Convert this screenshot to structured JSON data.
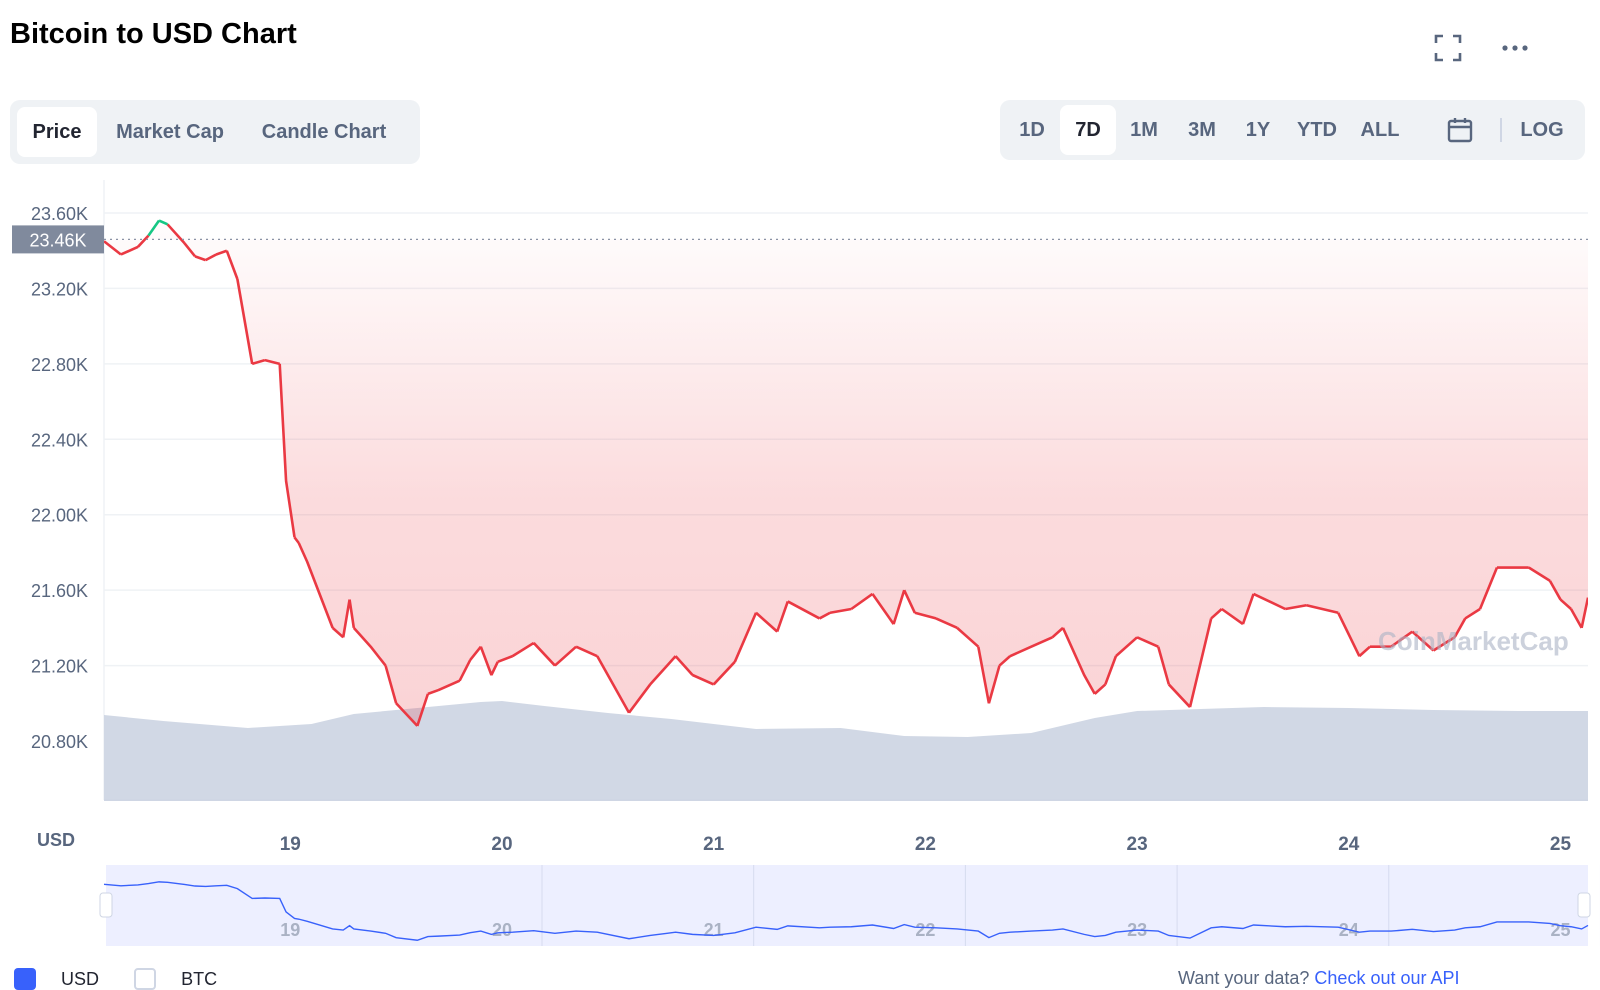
{
  "title": "Bitcoin to USD Chart",
  "icons": {
    "expand": "fullscreen-icon",
    "more": "more-icon",
    "calendar": "calendar-icon"
  },
  "tabs": [
    "Price",
    "Market Cap",
    "Candle Chart"
  ],
  "active_tab": "Price",
  "ranges": [
    "1D",
    "7D",
    "1M",
    "3M",
    "1Y",
    "YTD",
    "ALL"
  ],
  "active_range": "7D",
  "log_label": "LOG",
  "currency_label": "USD",
  "current_price_label": "23.46K",
  "watermark": "CoinMarketCap",
  "legend": [
    "USD",
    "BTC"
  ],
  "footer": {
    "text": "Want your data?",
    "link": "Check out our API"
  },
  "colors": {
    "up": "#16c784",
    "down": "#ea3943",
    "volume": "#cfd6e4",
    "navigator": "#3861fb",
    "accent": "#3861fb"
  },
  "chart_data": {
    "type": "line",
    "title": "Bitcoin to USD Chart",
    "ylabel": "USD",
    "xlabel": "",
    "ylim": [
      20650,
      23650
    ],
    "xlim": [
      18.12,
      25.13
    ],
    "grid": true,
    "yticks": [
      20800,
      21200,
      21600,
      22000,
      22400,
      22800,
      23200,
      23600
    ],
    "ytick_labels": [
      "20.80K",
      "21.20K",
      "21.60K",
      "22.00K",
      "22.40K",
      "22.80K",
      "23.20K",
      "23.60K"
    ],
    "xticks": [
      19,
      20,
      21,
      22,
      23,
      24,
      25
    ],
    "xtick_labels": [
      "19",
      "20",
      "21",
      "22",
      "23",
      "24",
      "25"
    ],
    "reference_value": 23460,
    "series": [
      {
        "x": [
          18.12,
          18.2,
          18.28,
          18.33,
          18.38,
          18.42,
          18.5,
          18.55,
          18.6,
          18.65,
          18.7,
          18.75,
          18.82,
          18.88,
          18.95,
          18.98,
          19.02,
          19.04,
          19.08,
          19.2,
          19.25,
          19.28,
          19.3,
          19.38,
          19.45,
          19.5,
          19.6,
          19.65,
          19.7,
          19.8,
          19.85,
          19.9,
          19.95,
          19.98,
          20.05,
          20.15,
          20.25,
          20.35,
          20.45,
          20.6,
          20.7,
          20.78,
          20.82,
          20.9,
          21.0,
          21.1,
          21.2,
          21.3,
          21.35,
          21.5,
          21.55,
          21.65,
          21.75,
          21.85,
          21.9,
          21.95,
          22.05,
          22.15,
          22.25,
          22.3,
          22.35,
          22.4,
          22.5,
          22.6,
          22.65,
          22.75,
          22.8,
          22.85,
          22.9,
          23.0,
          23.1,
          23.15,
          23.25,
          23.35,
          23.4,
          23.5,
          23.55,
          23.7,
          23.8,
          23.95,
          24.05,
          24.1,
          24.2,
          24.3,
          24.4,
          24.5,
          24.55,
          24.62,
          24.7,
          24.85,
          24.95,
          25.0,
          25.05,
          25.1,
          25.13
        ],
        "values": [
          23450,
          23380,
          23420,
          23480,
          23560,
          23540,
          23440,
          23370,
          23350,
          23380,
          23400,
          23250,
          22800,
          22820,
          22800,
          22180,
          21880,
          21850,
          21750,
          21400,
          21350,
          21550,
          21400,
          21300,
          21200,
          21000,
          20880,
          21050,
          21070,
          21120,
          21230,
          21300,
          21150,
          21220,
          21250,
          21320,
          21200,
          21300,
          21250,
          20950,
          21100,
          21200,
          21250,
          21150,
          21100,
          21220,
          21480,
          21380,
          21540,
          21450,
          21480,
          21500,
          21580,
          21420,
          21600,
          21480,
          21450,
          21400,
          21300,
          21000,
          21200,
          21250,
          21300,
          21350,
          21400,
          21150,
          21050,
          21100,
          21250,
          21350,
          21300,
          21100,
          20980,
          21450,
          21500,
          21420,
          21580,
          21500,
          21520,
          21480,
          21250,
          21300,
          21300,
          21380,
          21280,
          21350,
          21450,
          21500,
          21720,
          21720,
          21650,
          21550,
          21500,
          21400,
          21560
        ]
      }
    ],
    "volume": {
      "x": [
        18.12,
        18.4,
        18.8,
        19.1,
        19.3,
        19.6,
        19.9,
        20.0,
        20.2,
        20.5,
        20.8,
        21.2,
        21.6,
        21.9,
        22.2,
        22.5,
        22.8,
        23.0,
        23.3,
        23.6,
        24.0,
        24.4,
        24.8,
        25.13
      ],
      "relative": [
        0.85,
        0.79,
        0.72,
        0.76,
        0.86,
        0.92,
        0.98,
        0.99,
        0.94,
        0.87,
        0.81,
        0.71,
        0.72,
        0.64,
        0.63,
        0.67,
        0.82,
        0.89,
        0.91,
        0.93,
        0.92,
        0.9,
        0.89,
        0.89
      ]
    }
  }
}
